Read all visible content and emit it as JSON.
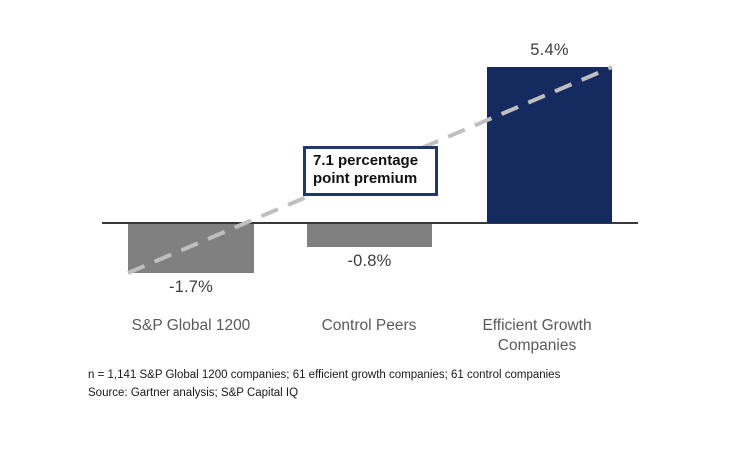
{
  "chart_data": {
    "type": "bar",
    "title": "",
    "categories": [
      "S&P Global 1200",
      "Control Peers",
      "Efficient Growth Companies"
    ],
    "values": [
      -1.7,
      -0.8,
      5.4
    ],
    "value_labels": [
      "-1.7%",
      "-0.8%",
      "5.4%"
    ],
    "bar_colors": [
      "#808080",
      "#808080",
      "#152a5e"
    ],
    "baseline": 0,
    "ylim": [
      -2,
      6
    ],
    "grid": false,
    "legend": false,
    "annotation": "7.1 percentage point premium",
    "trend_line": {
      "style": "dashed",
      "color": "#bfbfbf",
      "from": "bottom-left corner of S&P Global 1200 bar",
      "to": "top-right corner of Efficient Growth Companies bar"
    }
  },
  "footer": {
    "note": "n = 1,141 S&P Global 1200 companies; 61 efficient growth companies; 61 control companies",
    "source": "Source: Gartner analysis; S&P Capital IQ"
  },
  "colors": {
    "axis": "#383838",
    "gray_bar": "#808080",
    "navy_bar": "#152a5e",
    "callout_border": "#1f3864",
    "dash": "#bfbfbf"
  }
}
